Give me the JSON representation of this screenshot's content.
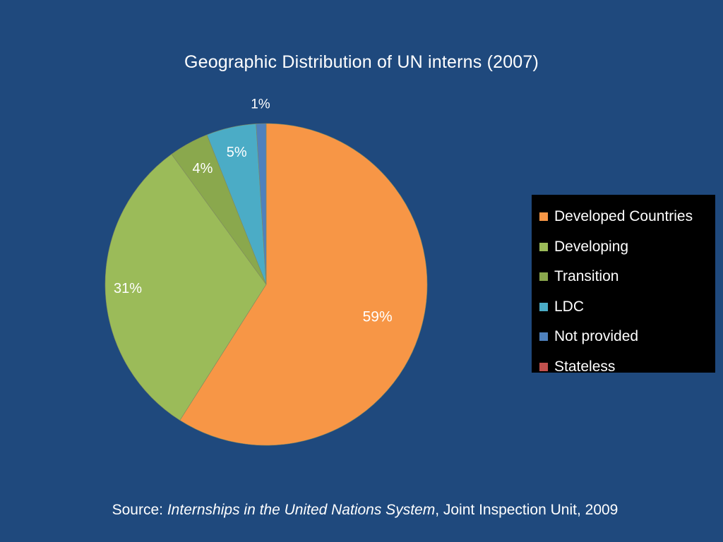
{
  "chart_data": {
    "type": "pie",
    "title": "Geographic Distribution of UN interns (2007)",
    "slices": [
      {
        "name": "Developed Countries",
        "value": 59,
        "label": "59%",
        "color": "#f79646"
      },
      {
        "name": "Developing",
        "value": 31,
        "label": "31%",
        "color": "#9bbb59"
      },
      {
        "name": "Transition",
        "value": 4,
        "label": "4%",
        "color": "#8aa84d"
      },
      {
        "name": "LDC",
        "value": 5,
        "label": "5%",
        "color": "#4bacc6"
      },
      {
        "name": "Not provided",
        "value": 1,
        "label": "1%",
        "color": "#4f81bd"
      },
      {
        "name": "Stateless",
        "value": 0,
        "label": "",
        "color": "#c0504d"
      }
    ],
    "start_angle_deg": 0,
    "direction": "clockwise",
    "legend_position": "right"
  },
  "source": {
    "prefix": "Source: ",
    "title": "Internships in the United Nations System",
    "suffix": ", Joint Inspection Unit, 2009"
  }
}
